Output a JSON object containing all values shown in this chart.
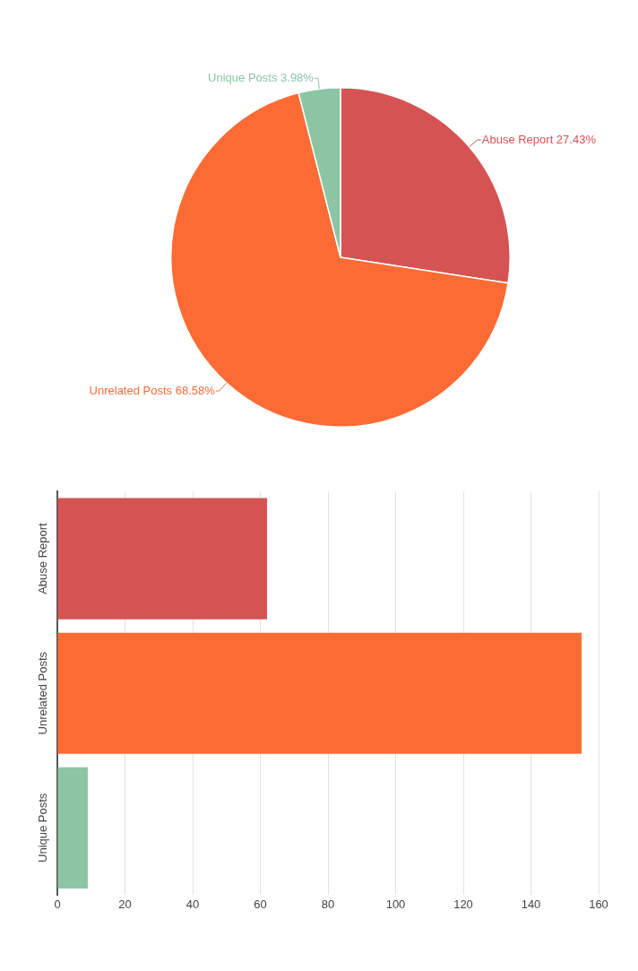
{
  "chart_data": [
    {
      "type": "pie",
      "categories": [
        "Abuse Report",
        "Unrelated Posts",
        "Unique Posts"
      ],
      "values": [
        27.43,
        68.58,
        3.98
      ],
      "colors": [
        "#d65353",
        "#fd6b35",
        "#8cc5a3"
      ],
      "value_labels": [
        "27.43%",
        "68.58%",
        "3.98%"
      ],
      "legend": false
    },
    {
      "type": "bar",
      "orientation": "horizontal",
      "categories": [
        "Abuse Report",
        "Unrelated Posts",
        "Unique Posts"
      ],
      "values": [
        62,
        155,
        9
      ],
      "colors": [
        "#d65353",
        "#fd6b35",
        "#8cc5a3"
      ],
      "xlim": [
        0,
        160
      ],
      "xticks": [
        0,
        20,
        40,
        60,
        80,
        100,
        120,
        140,
        160
      ],
      "grid": "x",
      "legend": false
    }
  ]
}
